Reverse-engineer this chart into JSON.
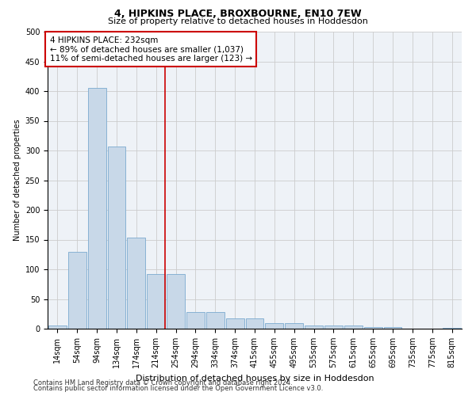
{
  "title": "4, HIPKINS PLACE, BROXBOURNE, EN10 7EW",
  "subtitle": "Size of property relative to detached houses in Hoddesdon",
  "xlabel": "Distribution of detached houses by size in Hoddesdon",
  "ylabel": "Number of detached properties",
  "footnote1": "Contains HM Land Registry data © Crown copyright and database right 2024.",
  "footnote2": "Contains public sector information licensed under the Open Government Licence v3.0.",
  "bin_labels": [
    "14sqm",
    "54sqm",
    "94sqm",
    "134sqm",
    "174sqm",
    "214sqm",
    "254sqm",
    "294sqm",
    "334sqm",
    "374sqm",
    "415sqm",
    "455sqm",
    "495sqm",
    "535sqm",
    "575sqm",
    "615sqm",
    "655sqm",
    "695sqm",
    "735sqm",
    "775sqm",
    "815sqm"
  ],
  "bar_heights": [
    5,
    130,
    405,
    307,
    153,
    92,
    92,
    28,
    28,
    18,
    18,
    10,
    10,
    5,
    5,
    5,
    3,
    3,
    0,
    0,
    2
  ],
  "bar_color": "#c8d8e8",
  "bar_edge_color": "#7baacf",
  "property_label": "4 HIPKINS PLACE: 232sqm",
  "annotation_line1": "← 89% of detached houses are smaller (1,037)",
  "annotation_line2": "11% of semi-detached houses are larger (123) →",
  "vline_color": "#cc0000",
  "vline_x_index": 5.45,
  "annotation_box_color": "#ffffff",
  "annotation_box_edge": "#cc0000",
  "ylim": [
    0,
    500
  ],
  "yticks": [
    0,
    50,
    100,
    150,
    200,
    250,
    300,
    350,
    400,
    450,
    500
  ],
  "title_fontsize": 9,
  "subtitle_fontsize": 8,
  "xlabel_fontsize": 8,
  "ylabel_fontsize": 7,
  "tick_fontsize": 7,
  "annotation_fontsize": 7.5,
  "footnote_fontsize": 6,
  "grid_color": "#cccccc",
  "background_color": "#eef2f7"
}
